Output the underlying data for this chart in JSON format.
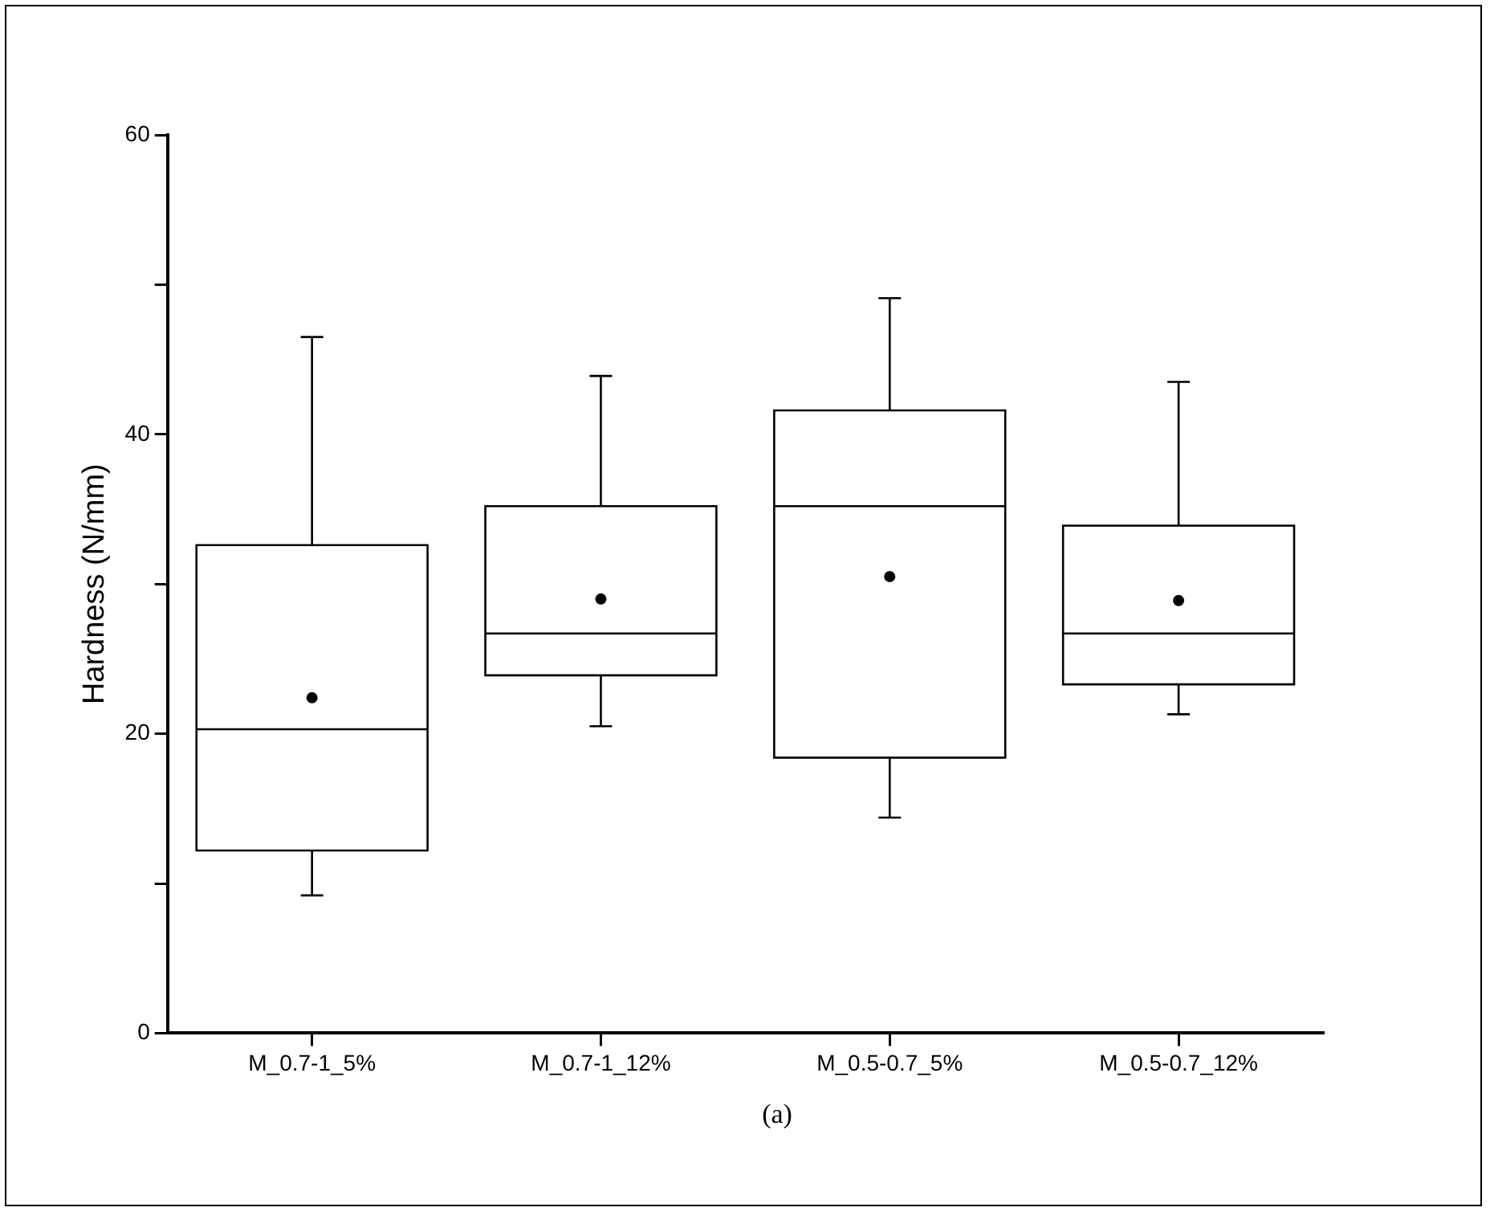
{
  "chart_data": {
    "type": "box",
    "ylabel": "Hardness (N/mm)",
    "categories": [
      "M_0.7-1_5%",
      "M_0.7-1_12%",
      "M_0.5-0.7_5%",
      "M_0.5-0.7_12%"
    ],
    "boxes": [
      {
        "low": 9.2,
        "q1": 12.2,
        "median": 20.3,
        "q3": 32.6,
        "high": 46.5,
        "mean": 22.4
      },
      {
        "low": 20.5,
        "q1": 23.9,
        "median": 26.7,
        "q3": 35.2,
        "high": 43.9,
        "mean": 29.0
      },
      {
        "low": 14.4,
        "q1": 18.4,
        "median": 35.2,
        "q3": 41.6,
        "high": 49.1,
        "mean": 30.5
      },
      {
        "low": 21.3,
        "q1": 23.3,
        "median": 26.7,
        "q3": 33.9,
        "high": 43.5,
        "mean": 28.9
      }
    ],
    "color": "#000000",
    "ylim": [
      0,
      60
    ],
    "yticks": [
      0,
      {
        "value": 10,
        "label": null
      },
      20,
      {
        "value": 30,
        "label": null
      },
      40,
      {
        "value": 50,
        "label": null
      },
      60
    ],
    "grid": false,
    "annotations": [
      "(a)"
    ]
  }
}
